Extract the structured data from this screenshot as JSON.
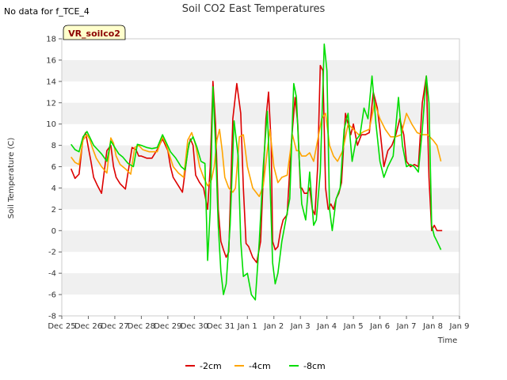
{
  "no_data_text": "No data for f_TCE_4",
  "site_label": "VR_soilco2",
  "chart_data": {
    "type": "line",
    "title": "Soil CO2 East Temperatures",
    "xlabel": "Time",
    "ylabel": "Soil Temperature (C)",
    "xlim": [
      0,
      15
    ],
    "ylim": [
      -8,
      18
    ],
    "yticks": [
      -8,
      -6,
      -4,
      -2,
      0,
      2,
      4,
      6,
      8,
      10,
      12,
      14,
      16,
      18
    ],
    "xticks": [
      "Dec 25",
      "Dec 26",
      "Dec 27",
      "Dec 28",
      "Dec 29",
      "Dec 30",
      "Dec 31",
      "Jan 1",
      "Jan 2",
      "Jan 3",
      "Jan 4",
      "Jan 5",
      "Jan 6",
      "Jan 7",
      "Jan 8",
      "Jan 9"
    ],
    "grid": "horizontal bands",
    "legend_position": "bottom",
    "series": [
      {
        "name": "-2cm",
        "color": "#dd0000",
        "x": [
          0.35,
          0.5,
          0.65,
          0.8,
          0.9,
          1.0,
          1.1,
          1.2,
          1.35,
          1.5,
          1.7,
          1.85,
          1.95,
          2.05,
          2.2,
          2.4,
          2.65,
          2.8,
          2.9,
          3.0,
          3.2,
          3.4,
          3.6,
          3.8,
          4.0,
          4.1,
          4.2,
          4.35,
          4.55,
          4.75,
          4.85,
          4.95,
          5.05,
          5.2,
          5.35,
          5.5,
          5.6,
          5.7,
          5.8,
          5.9,
          6.0,
          6.1,
          6.2,
          6.3,
          6.45,
          6.6,
          6.75,
          6.85,
          6.95,
          7.05,
          7.2,
          7.35,
          7.5,
          7.6,
          7.7,
          7.8,
          7.9,
          7.95,
          8.05,
          8.15,
          8.25,
          8.35,
          8.5,
          8.65,
          8.8,
          8.9,
          9.0,
          9.05,
          9.15,
          9.25,
          9.35,
          9.45,
          9.55,
          9.65,
          9.75,
          9.85,
          9.95,
          10.05,
          10.15,
          10.25,
          10.35,
          10.45,
          10.55,
          10.7,
          10.9,
          11.0,
          11.15,
          11.3,
          11.45,
          11.6,
          11.75,
          11.9,
          12.0,
          12.15,
          12.3,
          12.45,
          12.6,
          12.75,
          12.9,
          13.0,
          13.15,
          13.3,
          13.45,
          13.6,
          13.75,
          13.85,
          13.95,
          14.05,
          14.15,
          14.25,
          14.35
        ],
        "values": [
          5.8,
          4.9,
          5.3,
          8.7,
          9.2,
          7.8,
          6.5,
          5.0,
          4.2,
          3.5,
          7.5,
          8.0,
          6.0,
          5.0,
          4.4,
          3.9,
          7.8,
          7.6,
          7.0,
          7.0,
          6.8,
          6.8,
          7.6,
          8.6,
          7.5,
          6.0,
          5.0,
          4.4,
          3.6,
          7.5,
          8.6,
          8.0,
          5.2,
          4.5,
          4.0,
          2.0,
          6.0,
          14.0,
          10.0,
          2.0,
          -1.0,
          -1.8,
          -2.5,
          -2.0,
          10.5,
          13.8,
          11.0,
          4.0,
          -1.2,
          -1.5,
          -2.5,
          -3.0,
          -1.0,
          5.0,
          10.5,
          13.0,
          8.0,
          -1.0,
          -1.8,
          -1.5,
          0.0,
          1.0,
          1.5,
          8.0,
          12.5,
          10.0,
          4.0,
          4.0,
          3.5,
          3.5,
          4.0,
          2.0,
          1.5,
          6.0,
          15.5,
          15.0,
          4.0,
          2.0,
          2.5,
          2.0,
          3.0,
          3.5,
          4.5,
          11.0,
          9.0,
          10.0,
          8.0,
          9.0,
          9.0,
          9.2,
          13.0,
          11.5,
          9.5,
          6.0,
          7.5,
          8.0,
          9.0,
          10.5,
          9.0,
          6.5,
          6.0,
          6.2,
          6.0,
          12.0,
          14.5,
          5.0,
          0.0,
          0.5,
          0.0,
          0.0,
          0.0
        ]
      },
      {
        "name": "-4cm",
        "color": "#ffa500",
        "x": [
          0.35,
          0.5,
          0.65,
          0.8,
          0.95,
          1.05,
          1.15,
          1.3,
          1.5,
          1.7,
          1.85,
          1.95,
          2.05,
          2.2,
          2.4,
          2.6,
          2.75,
          2.9,
          3.05,
          3.3,
          3.6,
          3.8,
          3.95,
          4.05,
          4.2,
          4.4,
          4.6,
          4.75,
          4.9,
          5.05,
          5.2,
          5.35,
          5.5,
          5.65,
          5.75,
          5.85,
          5.95,
          6.05,
          6.15,
          6.3,
          6.45,
          6.55,
          6.7,
          6.85,
          7.0,
          7.2,
          7.45,
          7.6,
          7.75,
          7.85,
          8.0,
          8.15,
          8.3,
          8.5,
          8.7,
          8.85,
          8.95,
          9.05,
          9.2,
          9.35,
          9.5,
          9.65,
          9.8,
          9.95,
          10.1,
          10.25,
          10.4,
          10.6,
          10.8,
          11.0,
          11.2,
          11.4,
          11.6,
          11.8,
          12.0,
          12.2,
          12.4,
          12.6,
          12.8,
          13.0,
          13.2,
          13.4,
          13.6,
          13.8,
          14.0,
          14.15,
          14.3
        ],
        "values": [
          6.9,
          6.4,
          6.2,
          8.5,
          9.0,
          8.6,
          7.8,
          6.8,
          6.0,
          5.4,
          8.7,
          8.2,
          7.0,
          6.2,
          5.8,
          5.3,
          7.8,
          8.0,
          7.6,
          7.4,
          7.4,
          8.8,
          8.0,
          7.2,
          6.0,
          5.4,
          5.0,
          8.5,
          9.2,
          8.0,
          6.0,
          5.0,
          4.2,
          4.8,
          6.0,
          8.5,
          9.5,
          7.5,
          5.0,
          4.0,
          3.6,
          4.0,
          8.8,
          9.0,
          6.0,
          4.0,
          3.2,
          4.2,
          7.5,
          9.5,
          6.0,
          4.5,
          5.0,
          5.2,
          9.0,
          7.5,
          7.5,
          7.0,
          7.0,
          7.3,
          6.5,
          8.5,
          10.5,
          11.0,
          8.0,
          7.0,
          6.5,
          7.5,
          10.0,
          9.5,
          9.0,
          9.3,
          9.5,
          12.0,
          10.5,
          9.5,
          8.8,
          8.8,
          9.0,
          11.0,
          10.0,
          9.2,
          9.0,
          9.0,
          8.5,
          8.0,
          6.5
        ]
      },
      {
        "name": "-8cm",
        "color": "#00dd00",
        "x": [
          0.35,
          0.5,
          0.65,
          0.8,
          0.95,
          1.05,
          1.2,
          1.35,
          1.5,
          1.7,
          1.85,
          2.0,
          2.15,
          2.3,
          2.5,
          2.7,
          2.85,
          3.0,
          3.2,
          3.4,
          3.6,
          3.8,
          3.95,
          4.1,
          4.3,
          4.5,
          4.65,
          4.8,
          4.95,
          5.1,
          5.25,
          5.4,
          5.5,
          5.6,
          5.7,
          5.8,
          5.9,
          6.0,
          6.1,
          6.2,
          6.35,
          6.5,
          6.65,
          6.75,
          6.85,
          7.0,
          7.15,
          7.3,
          7.45,
          7.6,
          7.75,
          7.85,
          7.95,
          8.05,
          8.15,
          8.3,
          8.45,
          8.6,
          8.75,
          8.85,
          8.95,
          9.05,
          9.2,
          9.35,
          9.5,
          9.6,
          9.75,
          9.9,
          10.0,
          10.1,
          10.2,
          10.35,
          10.5,
          10.65,
          10.8,
          10.95,
          11.1,
          11.25,
          11.4,
          11.55,
          11.7,
          11.85,
          12.0,
          12.15,
          12.3,
          12.5,
          12.7,
          12.85,
          13.0,
          13.15,
          13.3,
          13.45,
          13.6,
          13.75,
          13.85,
          13.95,
          14.05,
          14.15,
          14.3
        ],
        "values": [
          8.1,
          7.6,
          7.4,
          8.8,
          9.3,
          8.8,
          8.0,
          7.6,
          7.2,
          6.5,
          8.4,
          7.8,
          7.2,
          6.9,
          6.3,
          6.0,
          8.1,
          8.0,
          7.8,
          7.7,
          7.8,
          9.0,
          8.2,
          7.4,
          6.8,
          6.0,
          5.7,
          8.2,
          8.8,
          7.8,
          6.5,
          6.3,
          -2.8,
          2.0,
          13.5,
          8.0,
          0.5,
          -3.8,
          -6.0,
          -5.0,
          0.5,
          10.3,
          7.0,
          -1.0,
          -4.3,
          -4.0,
          -6.0,
          -6.5,
          -1.0,
          6.0,
          11.2,
          5.0,
          -3.0,
          -5.0,
          -4.0,
          -1.0,
          1.0,
          3.0,
          13.8,
          12.5,
          7.0,
          2.5,
          1.0,
          5.5,
          0.5,
          1.0,
          5.5,
          17.5,
          15.0,
          2.0,
          0.0,
          3.0,
          4.0,
          9.5,
          11.0,
          6.5,
          8.5,
          9.0,
          11.5,
          10.5,
          14.5,
          10.0,
          6.5,
          5.0,
          6.0,
          7.0,
          12.5,
          8.0,
          6.0,
          6.2,
          6.0,
          5.5,
          9.5,
          14.5,
          12.0,
          0.5,
          -0.5,
          -1.0,
          -1.8
        ]
      }
    ]
  }
}
